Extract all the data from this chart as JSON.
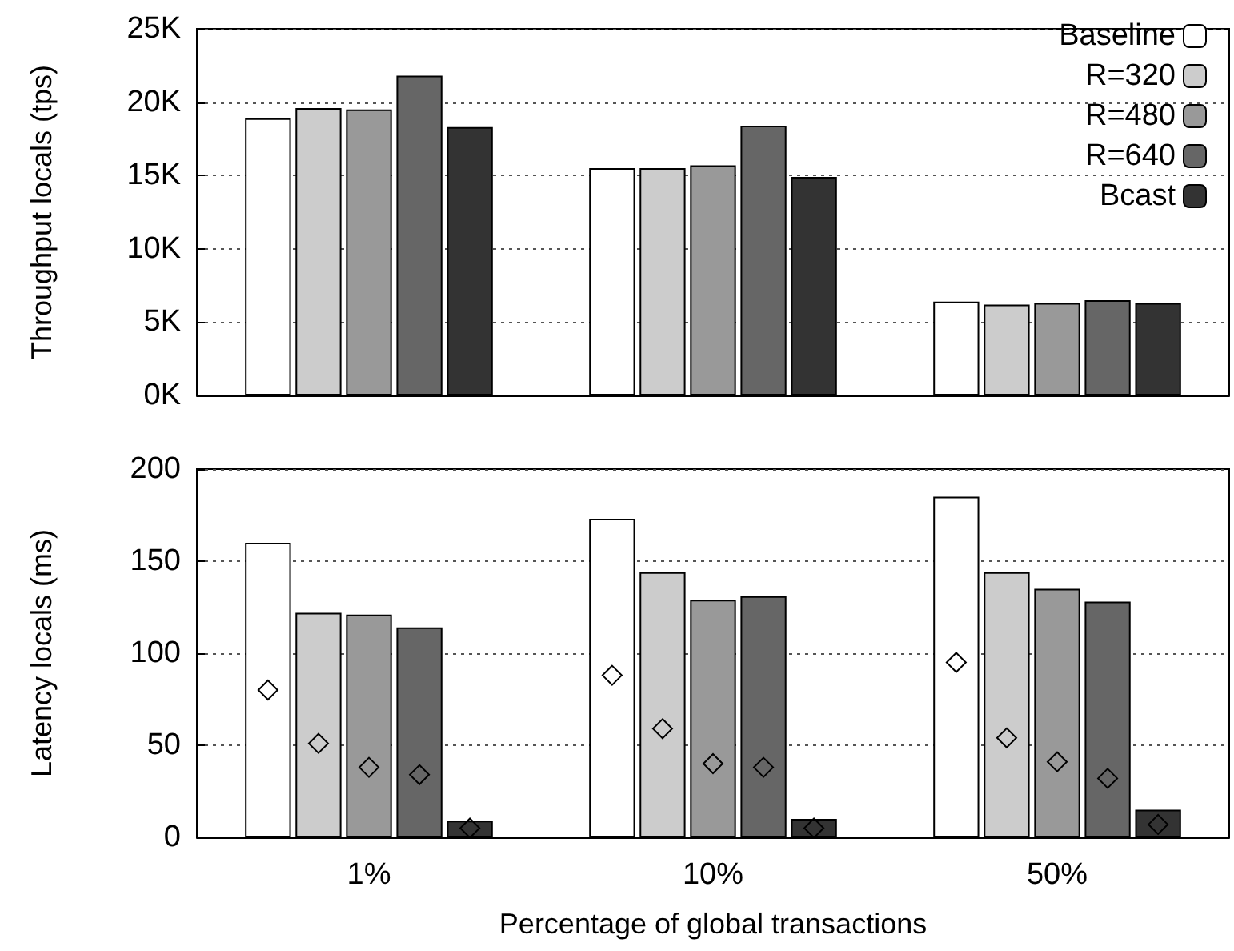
{
  "chart_data": [
    {
      "type": "bar",
      "ylabel": "Throughput locals (tps)",
      "categories": [
        null,
        null,
        null
      ],
      "tick_labels": "y",
      "grid": "y",
      "legend": "top right",
      "ylim": [
        0,
        25000
      ],
      "yticks": [
        {
          "value": 0,
          "label": "0K"
        },
        {
          "value": 5000,
          "label": "5K"
        },
        {
          "value": 10000,
          "label": "10K"
        },
        {
          "value": 15000,
          "label": "15K"
        },
        {
          "value": 20000,
          "label": "20K"
        },
        {
          "value": 25000,
          "label": "25K"
        }
      ],
      "series": [
        {
          "name": "Baseline",
          "color": "#ffffff",
          "values": [
            18900,
            15500,
            6400
          ]
        },
        {
          "name": "R=320",
          "color": "#cccccc",
          "values": [
            19600,
            15500,
            6200
          ]
        },
        {
          "name": "R=480",
          "color": "#999999",
          "values": [
            19500,
            15700,
            6300
          ]
        },
        {
          "name": "R=640",
          "color": "#666666",
          "values": [
            21800,
            18400,
            6500
          ]
        },
        {
          "name": "Bcast",
          "color": "#333333",
          "values": [
            18300,
            14900,
            6300
          ]
        }
      ]
    },
    {
      "type": "bar",
      "ylabel": "Latency locals (ms)",
      "xlabel": "Percentage of global transactions",
      "categories": [
        "1%",
        "10%",
        "50%"
      ],
      "grid": "y",
      "ylim": [
        0,
        200
      ],
      "yticks": [
        0,
        50,
        100,
        150,
        200
      ],
      "series": [
        {
          "color": "#ffffff",
          "values": [
            160,
            173,
            185
          ]
        },
        {
          "color": "#cccccc",
          "values": [
            122,
            144,
            144
          ]
        },
        {
          "color": "#999999",
          "values": [
            121,
            129,
            135
          ]
        },
        {
          "color": "#666666",
          "values": [
            114,
            131,
            128
          ]
        },
        {
          "color": "#333333",
          "values": [
            9,
            10,
            15
          ]
        },
        {
          "type": "scatter",
          "marker": "diamond",
          "color": "#000000",
          "x": [
            "1%",
            "10%",
            "50%"
          ],
          "values": [
            80,
            88,
            95
          ]
        },
        {
          "type": "scatter",
          "marker": "diamond",
          "color": "#000000",
          "x": [
            "1%",
            "10%",
            "50%"
          ],
          "values": [
            51,
            59,
            54
          ]
        },
        {
          "type": "scatter",
          "marker": "diamond",
          "color": "#000000",
          "x": [
            "1%",
            "10%",
            "50%"
          ],
          "values": [
            38,
            40,
            41
          ]
        },
        {
          "type": "scatter",
          "marker": "diamond",
          "color": "#000000",
          "x": [
            "1%",
            "10%",
            "50%"
          ],
          "values": [
            34,
            38,
            32
          ]
        },
        {
          "type": "scatter",
          "marker": "diamond",
          "color": "#000000",
          "x": [
            "1%",
            "10%",
            "50%"
          ],
          "values": [
            5,
            5,
            7
          ]
        }
      ]
    }
  ]
}
